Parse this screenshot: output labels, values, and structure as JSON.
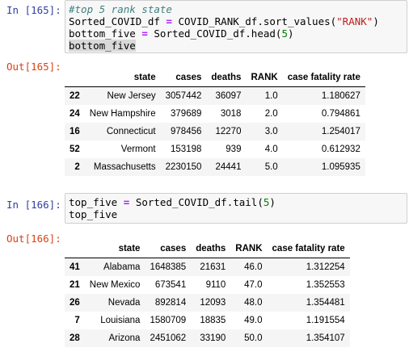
{
  "cells": [
    {
      "in_prompt": "In [165]:",
      "code": {
        "comment": "#top 5 rank state",
        "line2_a": "Sorted_COVID_df",
        "line2_eq": "=",
        "line2_b": "COVID_RANK_df.sort_values(",
        "line2_str": "\"RANK\"",
        "line2_c": ")",
        "line3_a": "bottom_five",
        "line3_eq": "=",
        "line3_b": "Sorted_COVID_df.head(",
        "line3_num": "5",
        "line3_c": ")",
        "line4": "bottom_five"
      },
      "out_prompt": "Out[165]:",
      "table": {
        "columns": [
          "state",
          "cases",
          "deaths",
          "RANK",
          "case fatality rate"
        ],
        "rows": [
          {
            "index": "22",
            "cells": [
              "New Jersey",
              "3057442",
              "36097",
              "1.0",
              "1.180627"
            ]
          },
          {
            "index": "24",
            "cells": [
              "New Hampshire",
              "379689",
              "3018",
              "2.0",
              "0.794861"
            ]
          },
          {
            "index": "16",
            "cells": [
              "Connecticut",
              "978456",
              "12270",
              "3.0",
              "1.254017"
            ]
          },
          {
            "index": "52",
            "cells": [
              "Vermont",
              "153198",
              "939",
              "4.0",
              "0.612932"
            ]
          },
          {
            "index": "2",
            "cells": [
              "Massachusetts",
              "2230150",
              "24441",
              "5.0",
              "1.095935"
            ]
          }
        ]
      }
    },
    {
      "in_prompt": "In [166]:",
      "code": {
        "line1_a": "top_five",
        "line1_eq": "=",
        "line1_b": "Sorted_COVID_df.tail(",
        "line1_num": "5",
        "line1_c": ")",
        "line2": "top_five"
      },
      "out_prompt": "Out[166]:",
      "table": {
        "columns": [
          "state",
          "cases",
          "deaths",
          "RANK",
          "case fatality rate"
        ],
        "rows": [
          {
            "index": "41",
            "cells": [
              "Alabama",
              "1648385",
              "21631",
              "46.0",
              "1.312254"
            ]
          },
          {
            "index": "21",
            "cells": [
              "New Mexico",
              "673541",
              "9110",
              "47.0",
              "1.352553"
            ]
          },
          {
            "index": "26",
            "cells": [
              "Nevada",
              "892814",
              "12093",
              "48.0",
              "1.354481"
            ]
          },
          {
            "index": "7",
            "cells": [
              "Louisiana",
              "1580709",
              "18835",
              "49.0",
              "1.191554"
            ]
          },
          {
            "index": "28",
            "cells": [
              "Arizona",
              "2451062",
              "33190",
              "50.0",
              "1.354107"
            ]
          }
        ]
      }
    }
  ]
}
